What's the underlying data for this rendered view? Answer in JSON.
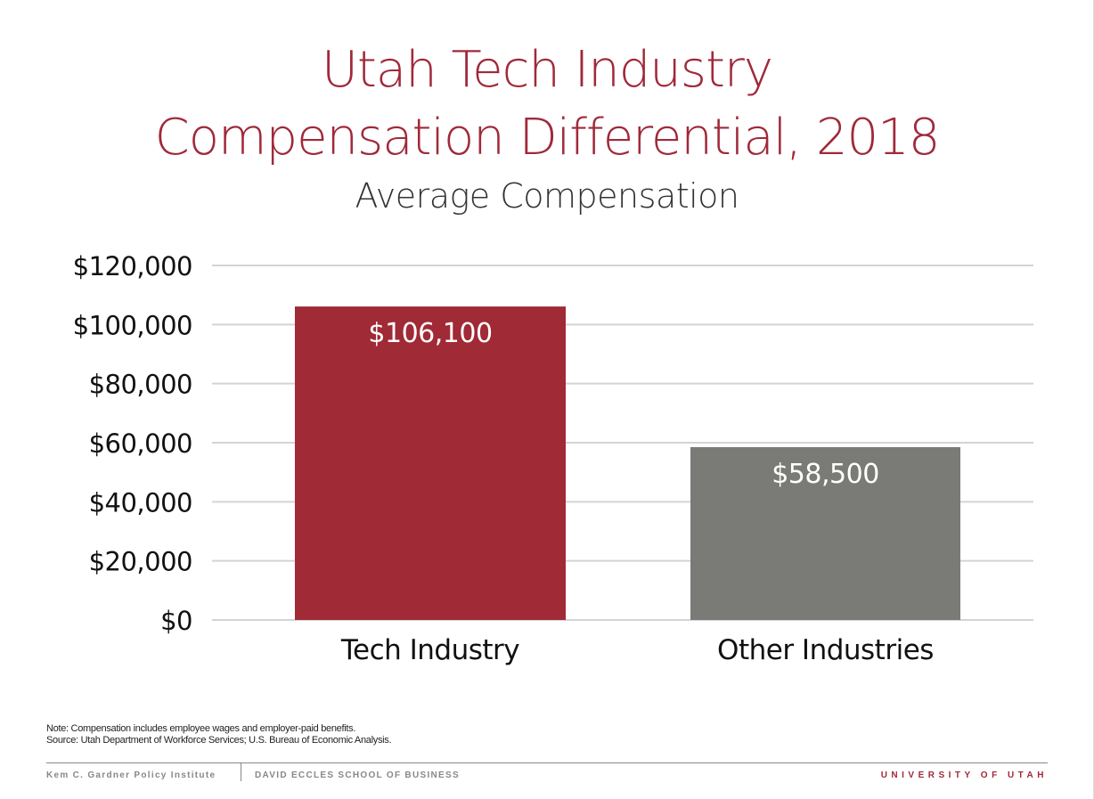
{
  "chart_data": {
    "type": "bar",
    "title": "Utah Tech Industry Compensation Differential, 2018",
    "title_lines": [
      "Utah Tech Industry",
      "Compensation Differential, 2018"
    ],
    "subtitle": "Average Compensation",
    "categories": [
      "Tech Industry",
      "Other Industries"
    ],
    "values": [
      106100,
      58500
    ],
    "data_labels": [
      "$106,100",
      "$58,500"
    ],
    "bar_colors": [
      "#a02a36",
      "#7a7a77"
    ],
    "ylim": [
      0,
      120000
    ],
    "yticks": [
      0,
      20000,
      40000,
      60000,
      80000,
      100000,
      120000
    ],
    "ytick_labels": [
      "$0",
      "$20,000",
      "$40,000",
      "$60,000",
      "$80,000",
      "$100,000",
      "$120,000"
    ],
    "grid": true,
    "xlabel": "",
    "ylabel": ""
  },
  "notes": {
    "note": "Note: Compensation includes employee wages and employer-paid benefits.",
    "source": "Source: Utah Department of Workforce Services; U.S. Bureau of Economic Analysis."
  },
  "footer": {
    "left": "Kem C. Gardner Policy Institute",
    "middle": "DAVID ECCLES SCHOOL OF BUSINESS",
    "right": "UNIVERSITY OF UTAH"
  },
  "colors": {
    "accent": "#a0293a",
    "gray": "#7a7a77"
  }
}
